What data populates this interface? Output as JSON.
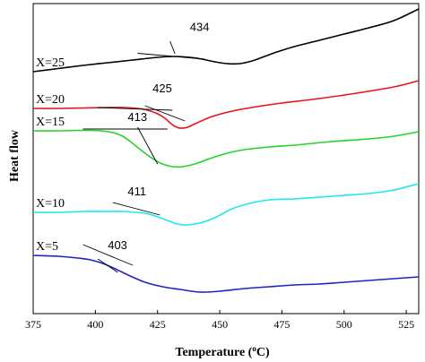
{
  "chart_data": {
    "type": "line",
    "title": "",
    "xlabel": "Temperature (°C)",
    "xlabel_parts": {
      "before": "Temperature (",
      "sup": "o",
      "after": "C)"
    },
    "ylabel": "Heat flow",
    "xlim": [
      375,
      530
    ],
    "xticks": [
      375,
      400,
      425,
      450,
      475,
      500,
      525
    ],
    "y_ticks_labeled": false,
    "grid": false,
    "legend": "none",
    "series": [
      {
        "name": "X=25",
        "color": "#000000",
        "onset_label": "434",
        "tangent": [
          [
            417,
            59.5
          ],
          [
            444,
            66
          ]
        ],
        "onset_label_at": [
          438,
          34.5
        ],
        "onset_pointer": [
          [
            430,
            46
          ],
          [
            432,
            60
          ]
        ],
        "points": [
          [
            375,
            80
          ],
          [
            385,
            76.5
          ],
          [
            395,
            73
          ],
          [
            405,
            70
          ],
          [
            415,
            67
          ],
          [
            425,
            64
          ],
          [
            432,
            63
          ],
          [
            438,
            64
          ],
          [
            443,
            66
          ],
          [
            448,
            69
          ],
          [
            453,
            71
          ],
          [
            458,
            71
          ],
          [
            463,
            68
          ],
          [
            468,
            63
          ],
          [
            473,
            58
          ],
          [
            480,
            52
          ],
          [
            490,
            45
          ],
          [
            500,
            38
          ],
          [
            510,
            31
          ],
          [
            520,
            23
          ],
          [
            530,
            10
          ]
        ]
      },
      {
        "name": "X=20",
        "color": "#e8141e",
        "onset_label": "425",
        "tangent": [
          [
            401,
            120
          ],
          [
            431,
            123
          ]
        ],
        "onset_label_at": [
          423,
          103
        ],
        "onset_pointer": [
          [
            420,
            118
          ],
          [
            436,
            135
          ]
        ],
        "points": [
          [
            375,
            121
          ],
          [
            385,
            121
          ],
          [
            395,
            120.5
          ],
          [
            405,
            120
          ],
          [
            412,
            120
          ],
          [
            417,
            121
          ],
          [
            421,
            123
          ],
          [
            425,
            127
          ],
          [
            428,
            132
          ],
          [
            430,
            137
          ],
          [
            432,
            141
          ],
          [
            434,
            143
          ],
          [
            437,
            142
          ],
          [
            441,
            137
          ],
          [
            447,
            130
          ],
          [
            455,
            124
          ],
          [
            465,
            119
          ],
          [
            475,
            115
          ],
          [
            490,
            110
          ],
          [
            505,
            104
          ],
          [
            520,
            97
          ],
          [
            530,
            90
          ]
        ]
      },
      {
        "name": "X=15",
        "color": "#23d32a",
        "onset_label": "413",
        "tangent": [
          [
            395,
            144
          ],
          [
            429,
            144
          ]
        ],
        "onset_label_at": [
          413,
          135
        ],
        "onset_pointer": [
          [
            417,
            142
          ],
          [
            425,
            183
          ]
        ],
        "points": [
          [
            375,
            146
          ],
          [
            385,
            146
          ],
          [
            395,
            145.5
          ],
          [
            402,
            146
          ],
          [
            407,
            148
          ],
          [
            411,
            152
          ],
          [
            415,
            160
          ],
          [
            419,
            169
          ],
          [
            423,
            177
          ],
          [
            427,
            183
          ],
          [
            431,
            186
          ],
          [
            435,
            186
          ],
          [
            440,
            183
          ],
          [
            446,
            177
          ],
          [
            453,
            171
          ],
          [
            460,
            167
          ],
          [
            470,
            164
          ],
          [
            480,
            162
          ],
          [
            495,
            158
          ],
          [
            510,
            155
          ],
          [
            520,
            152
          ],
          [
            530,
            147
          ]
        ]
      },
      {
        "name": "X=10",
        "color": "#1ee8ea",
        "onset_label": "411",
        "tangent": [
          [
            407,
            226
          ],
          [
            426,
            240
          ]
        ],
        "onset_label_at": [
          413,
          218
        ],
        "onset_pointer": [],
        "points": [
          [
            375,
            237
          ],
          [
            385,
            237
          ],
          [
            395,
            236
          ],
          [
            405,
            236
          ],
          [
            412,
            236
          ],
          [
            416,
            237
          ],
          [
            420,
            238
          ],
          [
            424,
            241
          ],
          [
            429,
            246
          ],
          [
            433,
            250
          ],
          [
            437,
            251
          ],
          [
            442,
            249
          ],
          [
            448,
            243
          ],
          [
            455,
            233
          ],
          [
            462,
            227
          ],
          [
            470,
            223
          ],
          [
            480,
            222
          ],
          [
            490,
            220
          ],
          [
            500,
            218
          ],
          [
            510,
            216
          ],
          [
            520,
            212
          ],
          [
            530,
            205
          ]
        ]
      },
      {
        "name": "X=5",
        "color": "#2222c8",
        "onset_label": "403",
        "tangent": [
          [
            395,
            273
          ],
          [
            415,
            296
          ]
        ],
        "onset_label_at": [
          405,
          278
        ],
        "onset_pointer": [
          [
            401,
            289
          ],
          [
            409,
            304
          ]
        ],
        "points": [
          [
            375,
            285
          ],
          [
            385,
            286
          ],
          [
            393,
            288
          ],
          [
            398,
            290
          ],
          [
            403,
            294
          ],
          [
            408,
            300
          ],
          [
            414,
            308
          ],
          [
            420,
            315
          ],
          [
            427,
            320
          ],
          [
            434,
            323
          ],
          [
            442,
            326
          ],
          [
            450,
            325
          ],
          [
            460,
            322
          ],
          [
            470,
            320
          ],
          [
            480,
            318
          ],
          [
            490,
            317
          ],
          [
            500,
            315
          ],
          [
            510,
            313
          ],
          [
            520,
            311
          ],
          [
            530,
            309
          ]
        ]
      }
    ]
  }
}
